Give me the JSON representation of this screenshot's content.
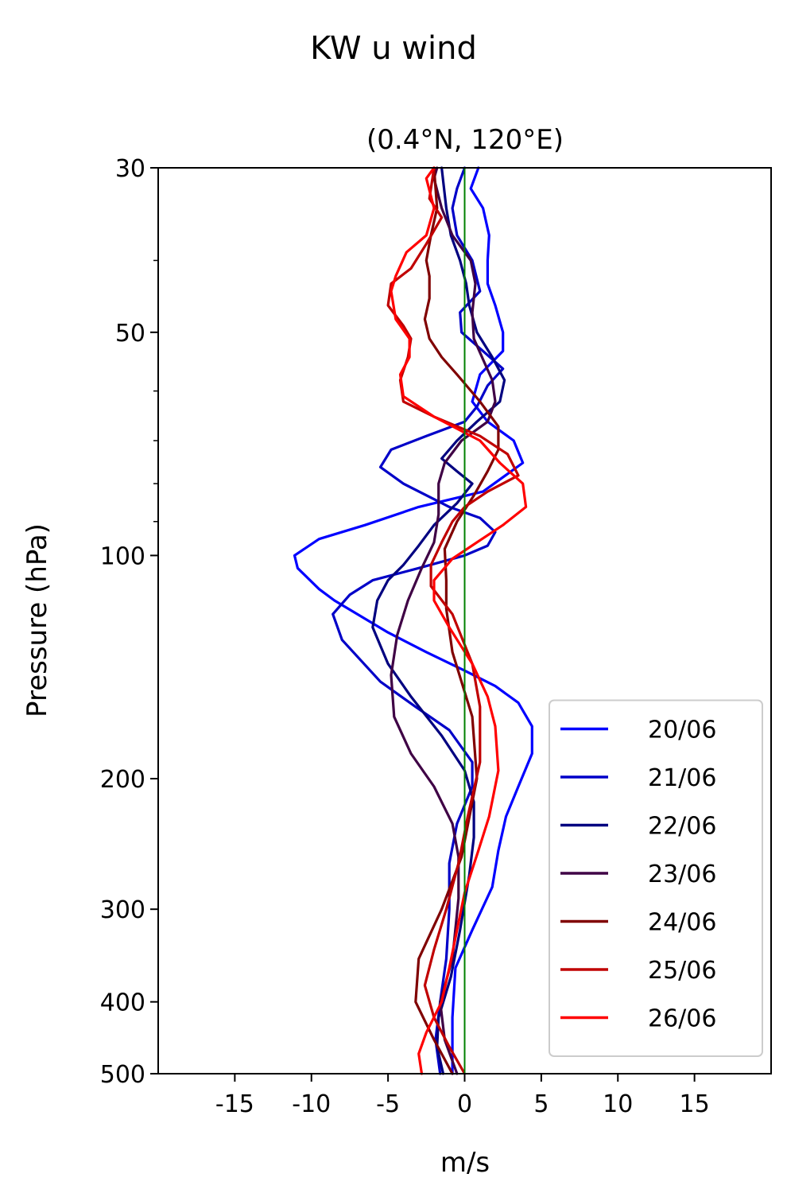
{
  "chart_data": {
    "type": "line",
    "title": "KW u wind",
    "subtitle": "(0.4°N, 120°E)",
    "xlabel": "m/s",
    "ylabel": "Pressure (hPa)",
    "xlim": [
      -20,
      20
    ],
    "ylim": [
      500,
      30
    ],
    "y_scale": "log",
    "x_ticks": [
      -15,
      -10,
      -5,
      0,
      5,
      10,
      15
    ],
    "x_tick_labels": [
      "-15",
      "-10",
      "-5",
      "0",
      "5",
      "10",
      "15"
    ],
    "y_ticks": [
      30,
      50,
      100,
      200,
      300,
      400,
      500
    ],
    "y_tick_labels": [
      "30",
      "50",
      "100",
      "200",
      "300",
      "400",
      "500"
    ],
    "y_minor_ticks": [
      40,
      60,
      70,
      80,
      90
    ],
    "grid": false,
    "legend_position": "bottom-right",
    "zero_line": {
      "x": 0,
      "color": "#008000"
    },
    "series": [
      {
        "name": "20/06",
        "color": "#0000ff",
        "points": [
          [
            -0.8,
            500
          ],
          [
            -0.8,
            420
          ],
          [
            -0.6,
            360
          ],
          [
            0.5,
            320
          ],
          [
            1.8,
            280
          ],
          [
            2.2,
            250
          ],
          [
            2.7,
            225
          ],
          [
            3.5,
            205
          ],
          [
            4.4,
            185
          ],
          [
            4.4,
            170
          ],
          [
            3.5,
            158
          ],
          [
            2.0,
            150
          ],
          [
            0,
            143
          ],
          [
            -2.5,
            135
          ],
          [
            -5,
            127
          ],
          [
            -8.5,
            115
          ],
          [
            -9.5,
            111
          ],
          [
            -10.9,
            104
          ],
          [
            -11.1,
            100
          ],
          [
            -9.5,
            95
          ],
          [
            -6.5,
            91
          ],
          [
            -3,
            86
          ],
          [
            1.2,
            82
          ],
          [
            3.8,
            75
          ],
          [
            3.2,
            70
          ],
          [
            1.5,
            66
          ],
          [
            0.5,
            62
          ],
          [
            1.0,
            57
          ],
          [
            2.5,
            53
          ],
          [
            2.5,
            50
          ],
          [
            2.0,
            46
          ],
          [
            1.5,
            43
          ],
          [
            1.5,
            40
          ],
          [
            1.6,
            37
          ],
          [
            1.2,
            34
          ],
          [
            0.4,
            32
          ],
          [
            0.9,
            30
          ]
        ]
      },
      {
        "name": "21/06",
        "color": "#0000c8",
        "points": [
          [
            -1.6,
            500
          ],
          [
            -1.9,
            450
          ],
          [
            -1.6,
            400
          ],
          [
            -1.2,
            350
          ],
          [
            -1.0,
            300
          ],
          [
            -1.0,
            260
          ],
          [
            -0.5,
            230
          ],
          [
            0.5,
            205
          ],
          [
            0.5,
            190
          ],
          [
            -1.0,
            172
          ],
          [
            -3.2,
            160
          ],
          [
            -5.5,
            148
          ],
          [
            -8.0,
            130
          ],
          [
            -8.6,
            120
          ],
          [
            -7.5,
            113
          ],
          [
            -6.0,
            108
          ],
          [
            -3.0,
            104
          ],
          [
            0,
            100
          ],
          [
            1.5,
            97
          ],
          [
            2.0,
            93
          ],
          [
            1.0,
            89
          ],
          [
            -1,
            86
          ],
          [
            -4,
            80
          ],
          [
            -5.5,
            76
          ],
          [
            -4.8,
            72
          ],
          [
            -2.5,
            69
          ],
          [
            0,
            66
          ],
          [
            0.8,
            63
          ],
          [
            1.5,
            59
          ],
          [
            2.5,
            56
          ],
          [
            1.2,
            53
          ],
          [
            -0.2,
            50
          ],
          [
            -0.3,
            47
          ],
          [
            1.0,
            44
          ],
          [
            0.5,
            40
          ],
          [
            -0.5,
            37
          ],
          [
            -0.8,
            34
          ],
          [
            -0.5,
            32
          ],
          [
            0,
            30
          ]
        ]
      },
      {
        "name": "22/06",
        "color": "#000080",
        "points": [
          [
            -1.4,
            500
          ],
          [
            -1.8,
            460
          ],
          [
            -1.7,
            420
          ],
          [
            -0.9,
            370
          ],
          [
            -0.3,
            320
          ],
          [
            0.3,
            270
          ],
          [
            0.6,
            240
          ],
          [
            0.6,
            215
          ],
          [
            0,
            195
          ],
          [
            -1.5,
            175
          ],
          [
            -3.5,
            155
          ],
          [
            -5,
            140
          ],
          [
            -6,
            125
          ],
          [
            -5.7,
            115
          ],
          [
            -5,
            108
          ],
          [
            -4,
            103
          ],
          [
            -3,
            97
          ],
          [
            -2,
            91
          ],
          [
            -0.5,
            85
          ],
          [
            0.5,
            80
          ],
          [
            -0.5,
            77
          ],
          [
            -1.5,
            74
          ],
          [
            -0.5,
            70
          ],
          [
            0.8,
            66
          ],
          [
            2.3,
            62
          ],
          [
            2.6,
            58
          ],
          [
            1.8,
            54
          ],
          [
            0.8,
            50
          ],
          [
            0.3,
            46
          ],
          [
            0.1,
            43
          ],
          [
            -0.3,
            40
          ],
          [
            -0.9,
            37
          ],
          [
            -1.2,
            34
          ],
          [
            -1.5,
            30
          ]
        ]
      },
      {
        "name": "23/06",
        "color": "#3f0045",
        "points": [
          [
            -0.5,
            500
          ],
          [
            -1.3,
            450
          ],
          [
            -1.6,
            400
          ],
          [
            -0.8,
            350
          ],
          [
            -0.4,
            290
          ],
          [
            -0.4,
            255
          ],
          [
            -0.8,
            230
          ],
          [
            -2.0,
            205
          ],
          [
            -3.5,
            185
          ],
          [
            -4.6,
            165
          ],
          [
            -4.8,
            145
          ],
          [
            -4.4,
            128
          ],
          [
            -3.7,
            115
          ],
          [
            -2.8,
            104
          ],
          [
            -2.0,
            96
          ],
          [
            -1.7,
            88
          ],
          [
            -1.7,
            80
          ],
          [
            -1.3,
            75
          ],
          [
            -0.2,
            70
          ],
          [
            1.5,
            66
          ],
          [
            2.0,
            62
          ],
          [
            1.8,
            58
          ],
          [
            1.3,
            55
          ],
          [
            0.6,
            51
          ],
          [
            0.5,
            47
          ],
          [
            0.7,
            43
          ],
          [
            0.4,
            40
          ],
          [
            -0.8,
            37
          ],
          [
            -1.5,
            34
          ],
          [
            -2.0,
            31
          ],
          [
            -1.8,
            30
          ]
        ]
      },
      {
        "name": "24/06",
        "color": "#800000",
        "points": [
          [
            -0.8,
            500
          ],
          [
            -2,
            450
          ],
          [
            -3.2,
            400
          ],
          [
            -3,
            350
          ],
          [
            -1.5,
            300
          ],
          [
            -0.2,
            255
          ],
          [
            0.8,
            200
          ],
          [
            0.5,
            165
          ],
          [
            -0.8,
            135
          ],
          [
            -1.2,
            118
          ],
          [
            -1.2,
            108
          ],
          [
            -1.3,
            98
          ],
          [
            -0.5,
            90
          ],
          [
            0.6,
            83
          ],
          [
            1.5,
            77
          ],
          [
            2.2,
            72
          ],
          [
            2.2,
            67
          ],
          [
            1.0,
            62
          ],
          [
            -0.5,
            57
          ],
          [
            -1.5,
            54
          ],
          [
            -2.3,
            51
          ],
          [
            -2.6,
            48
          ],
          [
            -2.3,
            45
          ],
          [
            -2.3,
            42
          ],
          [
            -2.5,
            40
          ],
          [
            -2.2,
            37
          ],
          [
            -1.8,
            34
          ],
          [
            -2,
            30
          ]
        ]
      },
      {
        "name": "25/06",
        "color": "#c00000",
        "points": [
          [
            0,
            500
          ],
          [
            -1,
            460
          ],
          [
            -2,
            420
          ],
          [
            -2.6,
            380
          ],
          [
            -2.0,
            340
          ],
          [
            -1.2,
            300
          ],
          [
            -0.4,
            260
          ],
          [
            0.2,
            225
          ],
          [
            1.0,
            190
          ],
          [
            1.0,
            160
          ],
          [
            0.5,
            140
          ],
          [
            -0.8,
            120
          ],
          [
            -2.2,
            110
          ],
          [
            -2.2,
            103
          ],
          [
            -1.5,
            96
          ],
          [
            -0.8,
            90
          ],
          [
            0,
            86
          ],
          [
            1.5,
            82
          ],
          [
            3.5,
            78
          ],
          [
            2.8,
            73
          ],
          [
            1.0,
            69
          ],
          [
            -2,
            65
          ],
          [
            -4,
            62
          ],
          [
            -4.2,
            58
          ],
          [
            -3.7,
            54
          ],
          [
            -3.5,
            51
          ],
          [
            -4.0,
            49
          ],
          [
            -5.0,
            46
          ],
          [
            -4.8,
            43
          ],
          [
            -3.5,
            41
          ],
          [
            -2.5,
            38
          ],
          [
            -1.5,
            35
          ],
          [
            -2.3,
            33
          ],
          [
            -2.0,
            30
          ]
        ]
      },
      {
        "name": "26/06",
        "color": "#ff0000",
        "points": [
          [
            -2.8,
            500
          ],
          [
            -3.0,
            470
          ],
          [
            -2.5,
            440
          ],
          [
            -1.5,
            400
          ],
          [
            -1.0,
            360
          ],
          [
            -0.5,
            320
          ],
          [
            0,
            285
          ],
          [
            0.9,
            250
          ],
          [
            1.6,
            225
          ],
          [
            2.2,
            195
          ],
          [
            2.0,
            170
          ],
          [
            1.5,
            155
          ],
          [
            0.5,
            140
          ],
          [
            -1,
            125
          ],
          [
            -2,
            115
          ],
          [
            -2,
            108
          ],
          [
            -0.8,
            101
          ],
          [
            0.8,
            96
          ],
          [
            2.5,
            91
          ],
          [
            4.0,
            86
          ],
          [
            3.8,
            80
          ],
          [
            2.3,
            75
          ],
          [
            1.0,
            70
          ],
          [
            -2,
            65
          ],
          [
            -4,
            61
          ],
          [
            -4.2,
            57
          ],
          [
            -3.6,
            54
          ],
          [
            -3.6,
            51
          ],
          [
            -4.5,
            48
          ],
          [
            -4.8,
            44
          ],
          [
            -4.5,
            42
          ],
          [
            -3.8,
            39
          ],
          [
            -2.5,
            37
          ],
          [
            -2.0,
            34
          ],
          [
            -2.5,
            31
          ],
          [
            -2.0,
            30
          ]
        ]
      }
    ]
  }
}
